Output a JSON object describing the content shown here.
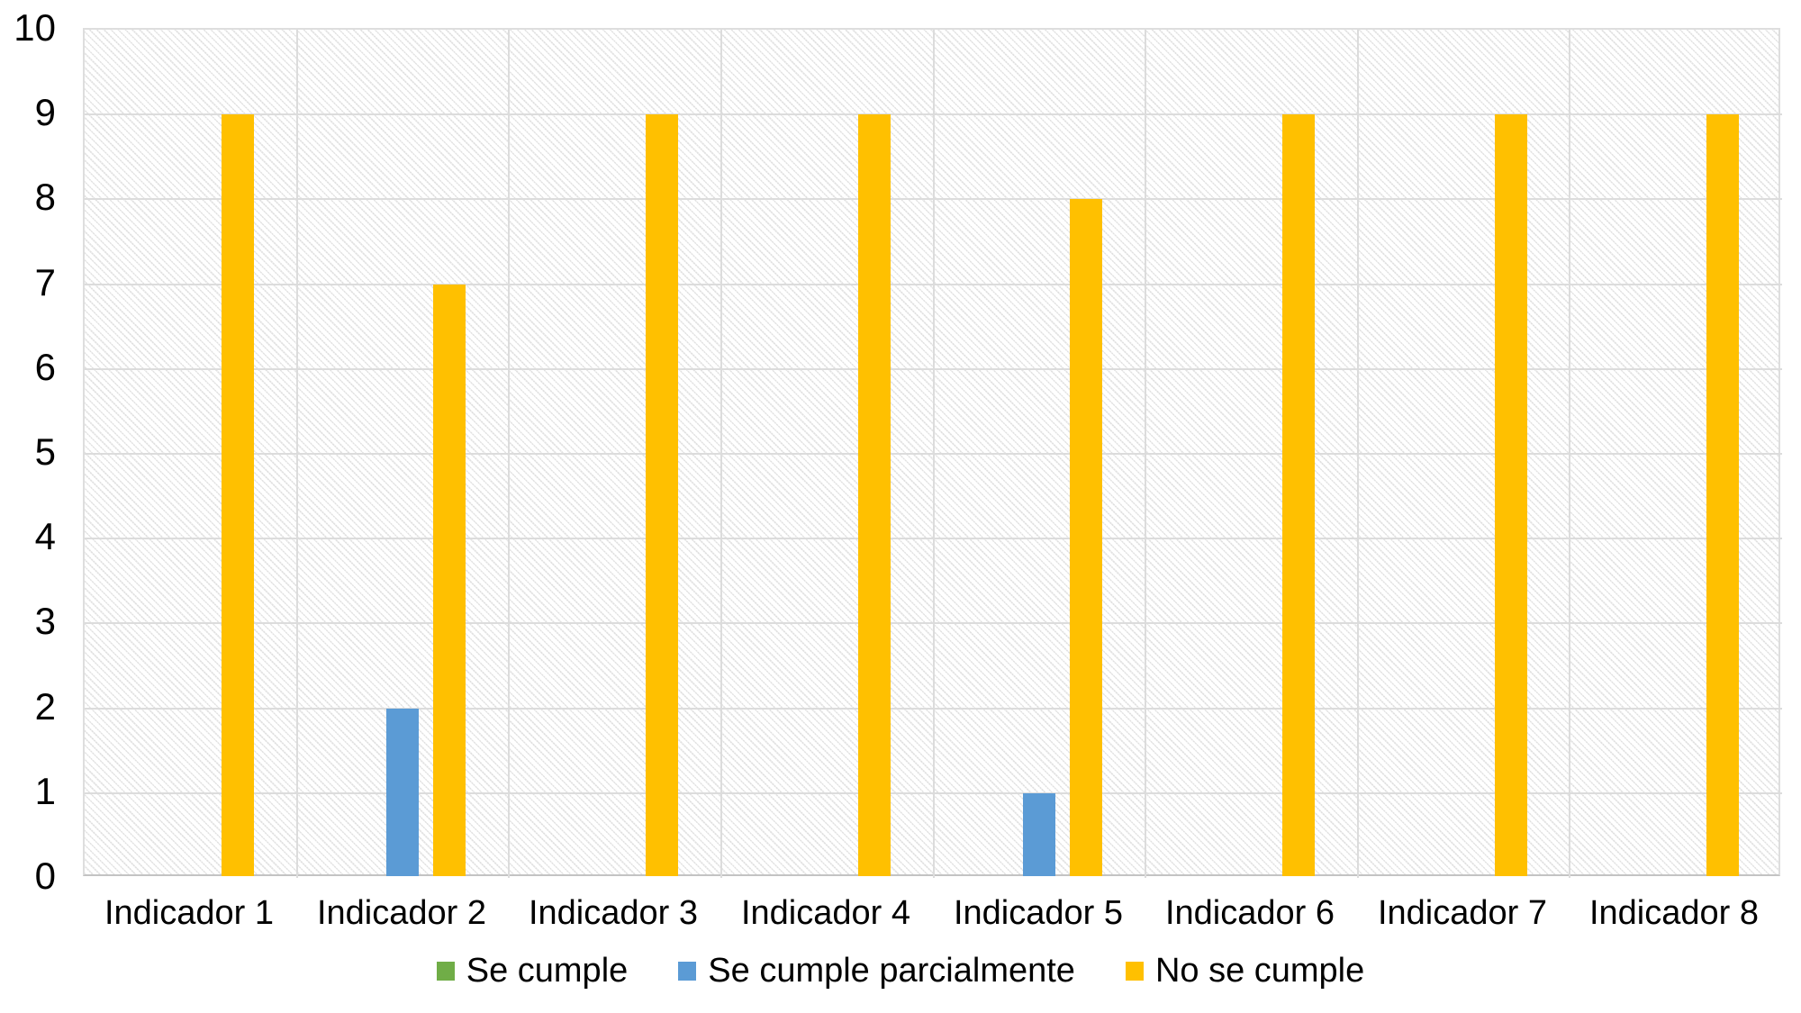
{
  "page": {
    "background_color": "#FFFFFF",
    "text_color": "#000000"
  },
  "chart_data": {
    "type": "bar",
    "title": "",
    "xlabel": "",
    "ylabel": "",
    "categories": [
      "Indicador 1",
      "Indicador 2",
      "Indicador 3",
      "Indicador 4",
      "Indicador 5",
      "Indicador 6",
      "Indicador 7",
      "Indicador 8"
    ],
    "series": [
      {
        "name": "Se cumple",
        "color": "#70AD47",
        "values": [
          0,
          0,
          0,
          0,
          0,
          0,
          0,
          0
        ]
      },
      {
        "name": "Se cumple parcialmente",
        "color": "#5B9BD5",
        "values": [
          0,
          2,
          0,
          0,
          1,
          0,
          0,
          0
        ]
      },
      {
        "name": "No se cumple",
        "color": "#FFC000",
        "values": [
          9,
          7,
          9,
          9,
          8,
          9,
          9,
          9
        ]
      }
    ],
    "ylim": [
      0,
      10
    ],
    "yticks": [
      0,
      1,
      2,
      3,
      4,
      5,
      6,
      7,
      8,
      9,
      10
    ],
    "grid": true,
    "plot_background": "diagonal-hatch",
    "gridline_color": "#DCDCDC",
    "axis_line_color": "#C3C3C3",
    "legend_position": "bottom"
  }
}
